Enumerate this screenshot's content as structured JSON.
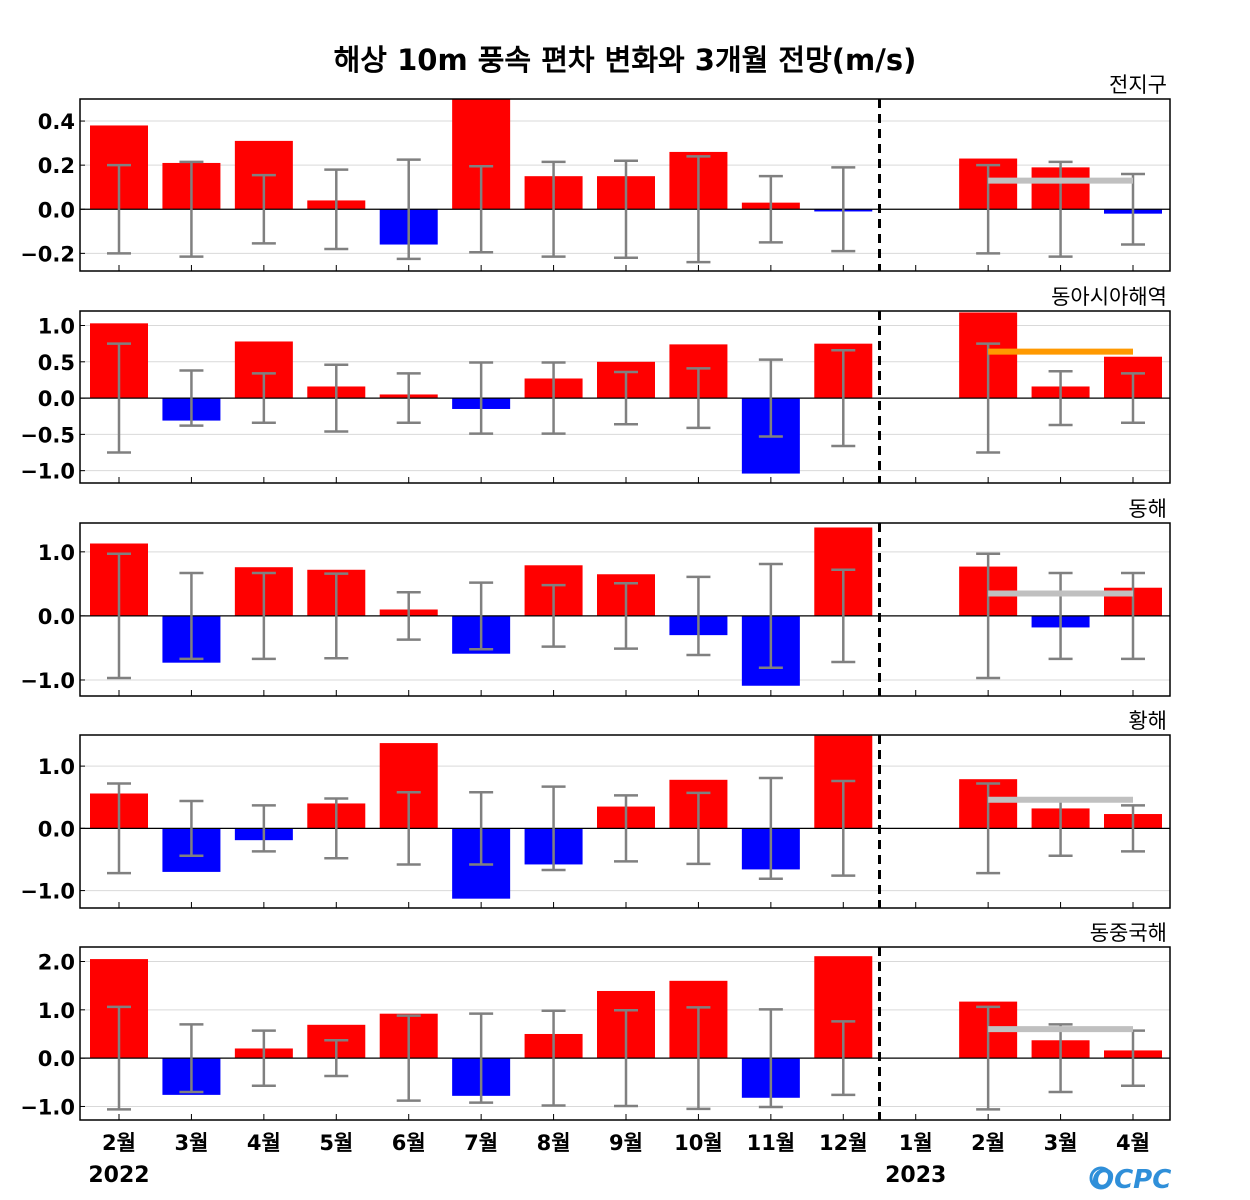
{
  "chart_data": {
    "type": "bar",
    "title": "해상 10m 풍속 편차 변화와 3개월 전망(m/s)",
    "categories": [
      "2월",
      "3월",
      "4월",
      "5월",
      "6월",
      "7월",
      "8월",
      "9월",
      "10월",
      "11월",
      "12월",
      "1월",
      "2월",
      "3월",
      "4월"
    ],
    "year_labels": [
      {
        "category_index": 0,
        "label": "2022"
      },
      {
        "category_index": 11,
        "label": "2023"
      }
    ],
    "divider_after_index": 10,
    "colors": {
      "positive": "#ff0000",
      "negative": "#0000ff",
      "errorbar": "#808080",
      "forecast_gray": "#c0c0c0",
      "forecast_orange": "#ff9900"
    },
    "logo": "OCPC",
    "panels": [
      {
        "name": "전지구",
        "ylim": [
          -0.28,
          0.5
        ],
        "yticks": [
          0.4,
          0.2,
          0.0,
          -0.2
        ],
        "tick_labels": [
          "0.4",
          "0.2",
          "0.0",
          "−0.2"
        ],
        "values": [
          0.38,
          0.21,
          0.31,
          0.04,
          -0.16,
          0.5,
          0.15,
          0.15,
          0.26,
          0.03,
          -0.01,
          0.0,
          0.23,
          0.19,
          -0.02
        ],
        "error": [
          0.2,
          0.215,
          0.155,
          0.18,
          0.225,
          0.195,
          0.215,
          0.22,
          0.24,
          0.15,
          0.19,
          null,
          0.2,
          0.215,
          0.16
        ],
        "forecast_line": {
          "value": 0.13,
          "color": "gray"
        }
      },
      {
        "name": "동아시아해역",
        "ylim": [
          -1.17,
          1.2
        ],
        "yticks": [
          1.0,
          0.5,
          0.0,
          -0.5,
          -1.0
        ],
        "tick_labels": [
          "1.0",
          "0.5",
          "0.0",
          "−0.5",
          "−1.0"
        ],
        "values": [
          1.03,
          -0.31,
          0.78,
          0.16,
          0.05,
          -0.15,
          0.27,
          0.5,
          0.74,
          -1.04,
          0.75,
          0.0,
          1.18,
          0.16,
          0.57
        ],
        "error": [
          0.75,
          0.38,
          0.34,
          0.46,
          0.34,
          0.49,
          0.49,
          0.36,
          0.41,
          0.53,
          0.66,
          null,
          0.75,
          0.37,
          0.34
        ],
        "forecast_line": {
          "value": 0.64,
          "color": "orange"
        }
      },
      {
        "name": "동해",
        "ylim": [
          -1.25,
          1.45
        ],
        "yticks": [
          1.0,
          0.0,
          -1.0
        ],
        "tick_labels": [
          "1.0",
          "0.0",
          "−1.0"
        ],
        "values": [
          1.13,
          -0.73,
          0.76,
          0.72,
          0.1,
          -0.59,
          0.79,
          0.65,
          -0.3,
          -1.09,
          1.38,
          0.0,
          0.77,
          -0.18,
          0.44
        ],
        "error": [
          0.97,
          0.67,
          0.67,
          0.66,
          0.37,
          0.52,
          0.48,
          0.51,
          0.61,
          0.81,
          0.72,
          null,
          0.97,
          0.67,
          0.67
        ],
        "forecast_line": {
          "value": 0.35,
          "color": "gray"
        }
      },
      {
        "name": "황해",
        "ylim": [
          -1.28,
          1.5
        ],
        "yticks": [
          1.0,
          0.0,
          -1.0
        ],
        "tick_labels": [
          "1.0",
          "0.0",
          "−1.0"
        ],
        "values": [
          0.56,
          -0.7,
          -0.19,
          0.4,
          1.37,
          -1.13,
          -0.58,
          0.35,
          0.78,
          -0.66,
          1.49,
          0.0,
          0.79,
          0.32,
          0.23
        ],
        "error": [
          0.72,
          0.44,
          0.37,
          0.48,
          0.58,
          0.58,
          0.67,
          0.53,
          0.57,
          0.81,
          0.76,
          null,
          0.72,
          0.44,
          0.37
        ],
        "forecast_line": {
          "value": 0.46,
          "color": "gray"
        }
      },
      {
        "name": "동중국해",
        "ylim": [
          -1.28,
          2.3
        ],
        "yticks": [
          2.0,
          1.0,
          0.0,
          -1.0
        ],
        "tick_labels": [
          "2.0",
          "1.0",
          "0.0",
          "−1.0"
        ],
        "values": [
          2.05,
          -0.76,
          0.2,
          0.69,
          0.92,
          -0.78,
          0.5,
          1.39,
          1.6,
          -0.82,
          2.11,
          0.0,
          1.17,
          0.37,
          0.16
        ],
        "error": [
          1.06,
          0.7,
          0.57,
          0.37,
          0.88,
          0.92,
          0.98,
          0.99,
          1.05,
          1.01,
          0.76,
          null,
          1.06,
          0.7,
          0.57
        ],
        "forecast_line": {
          "value": 0.6,
          "color": "gray"
        }
      }
    ]
  }
}
